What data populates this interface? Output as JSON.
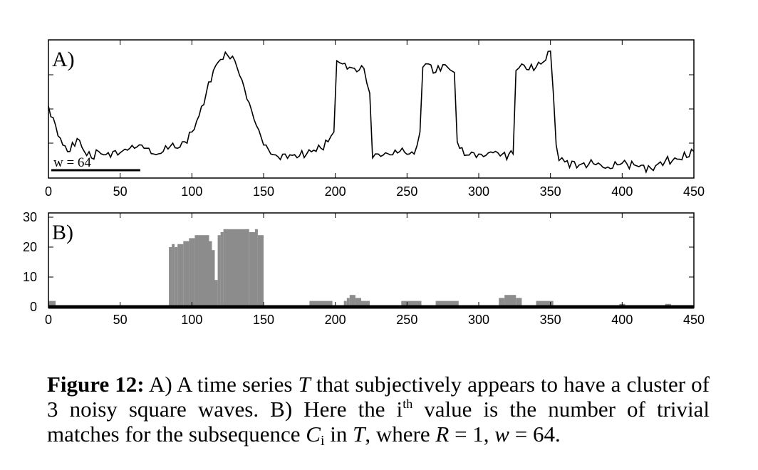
{
  "chart_data": [
    {
      "type": "line",
      "panel_label": "A)",
      "xlim": [
        0,
        450
      ],
      "x_ticks": [
        0,
        50,
        100,
        150,
        200,
        250,
        300,
        350,
        400,
        450
      ],
      "y_ticks_labeled": false,
      "annotation": {
        "text": "w = 64",
        "bar_from": 2,
        "bar_to": 64
      },
      "x": [
        0,
        5,
        10,
        15,
        20,
        25,
        30,
        35,
        40,
        45,
        50,
        55,
        60,
        65,
        70,
        75,
        80,
        85,
        90,
        95,
        100,
        105,
        110,
        115,
        120,
        125,
        130,
        135,
        140,
        145,
        150,
        155,
        160,
        165,
        170,
        175,
        180,
        185,
        190,
        195,
        199,
        201,
        205,
        210,
        215,
        220,
        224,
        226,
        230,
        235,
        240,
        245,
        255,
        259,
        261,
        265,
        270,
        275,
        280,
        283,
        285,
        290,
        295,
        300,
        305,
        310,
        315,
        324,
        326,
        330,
        335,
        340,
        345,
        350,
        352,
        354,
        356,
        360,
        370,
        380,
        390,
        400,
        410,
        420,
        430,
        440,
        450
      ],
      "y": [
        10,
        7,
        4,
        3,
        5,
        3,
        2,
        3,
        2.5,
        3,
        2.8,
        3.2,
        3.5,
        4,
        3.5,
        2.5,
        3,
        3.8,
        3.5,
        4.5,
        6,
        8.5,
        12,
        15.5,
        17.2,
        17.8,
        17,
        14,
        10.5,
        7,
        4,
        2.6,
        2.2,
        2.6,
        2.4,
        2.3,
        2.6,
        3.2,
        3.5,
        4.5,
        6,
        17,
        16.5,
        16,
        15.3,
        15.8,
        12,
        2,
        2.6,
        2.8,
        2.5,
        3,
        2.6,
        6,
        16,
        16.5,
        15.2,
        16.4,
        15.6,
        15.2,
        4.5,
        2.4,
        2.9,
        2.6,
        2.4,
        2.8,
        2.3,
        2.6,
        15.5,
        16.5,
        15.6,
        16,
        16.8,
        18.5,
        12,
        4,
        1.6,
        1.4,
        0.9,
        1.1,
        0.6,
        1.2,
        0.8,
        0.4,
        1.5,
        1.8,
        3
      ]
    },
    {
      "type": "bar",
      "panel_label": "B)",
      "xlim": [
        0,
        450
      ],
      "ylim": [
        0,
        30
      ],
      "x_ticks": [
        0,
        50,
        100,
        150,
        200,
        250,
        300,
        350,
        400,
        450
      ],
      "y_ticks": [
        0,
        10,
        20,
        30
      ],
      "segments": [
        {
          "x0": 0,
          "x1": 5,
          "y": 2
        },
        {
          "x0": 84,
          "x1": 86,
          "y": 20
        },
        {
          "x0": 86,
          "x1": 88,
          "y": 21
        },
        {
          "x0": 88,
          "x1": 90,
          "y": 20
        },
        {
          "x0": 90,
          "x1": 94,
          "y": 21
        },
        {
          "x0": 94,
          "x1": 98,
          "y": 22
        },
        {
          "x0": 98,
          "x1": 102,
          "y": 23
        },
        {
          "x0": 102,
          "x1": 112,
          "y": 24
        },
        {
          "x0": 112,
          "x1": 114,
          "y": 22
        },
        {
          "x0": 114,
          "x1": 116,
          "y": 19
        },
        {
          "x0": 116,
          "x1": 118,
          "y": 9
        },
        {
          "x0": 117,
          "x1": 118,
          "y": 0
        },
        {
          "x0": 118,
          "x1": 120,
          "y": 24
        },
        {
          "x0": 120,
          "x1": 122,
          "y": 25
        },
        {
          "x0": 122,
          "x1": 140,
          "y": 26
        },
        {
          "x0": 140,
          "x1": 144,
          "y": 25
        },
        {
          "x0": 144,
          "x1": 146,
          "y": 26
        },
        {
          "x0": 146,
          "x1": 150,
          "y": 24
        },
        {
          "x0": 182,
          "x1": 198,
          "y": 2
        },
        {
          "x0": 206,
          "x1": 208,
          "y": 2
        },
        {
          "x0": 208,
          "x1": 210,
          "y": 3
        },
        {
          "x0": 210,
          "x1": 214,
          "y": 4
        },
        {
          "x0": 214,
          "x1": 218,
          "y": 3
        },
        {
          "x0": 218,
          "x1": 224,
          "y": 2
        },
        {
          "x0": 246,
          "x1": 260,
          "y": 2
        },
        {
          "x0": 270,
          "x1": 286,
          "y": 2
        },
        {
          "x0": 314,
          "x1": 318,
          "y": 3
        },
        {
          "x0": 318,
          "x1": 326,
          "y": 4
        },
        {
          "x0": 326,
          "x1": 330,
          "y": 3
        },
        {
          "x0": 340,
          "x1": 352,
          "y": 2
        },
        {
          "x0": 398,
          "x1": 402,
          "y": 1
        },
        {
          "x0": 430,
          "x1": 434,
          "y": 1
        }
      ]
    }
  ],
  "caption": {
    "fig_label": "Figure 12:",
    "p1": " A) A time series ",
    "t1": "T",
    "p2": " that subjectively appears to have a cluster of 3 noisy square waves. B) Here the i",
    "sup": "th",
    "p3": " value is the number of trivial matches for the subsequence ",
    "c": "C",
    "csub": "i",
    "p4": " in ",
    "t2": "T",
    "p5": ", where ",
    "r": "R",
    "p6": " = 1, ",
    "w": "w",
    "p7": " = 64."
  }
}
